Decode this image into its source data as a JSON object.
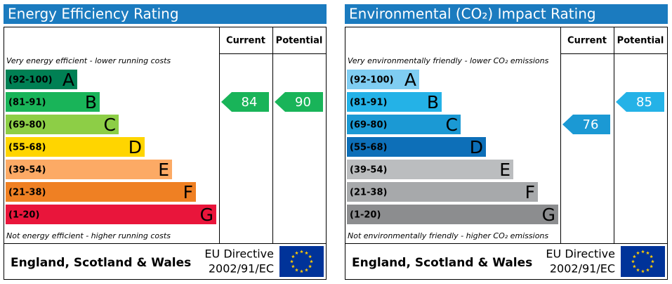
{
  "panels": [
    {
      "title": "Energy Efficiency Rating",
      "headers": [
        "Current",
        "Potential"
      ],
      "top_note": "Very energy efficient - lower running costs",
      "bottom_note": "Not energy efficient - higher running costs",
      "bands": [
        {
          "range": "(92-100)",
          "letter": "A",
          "color": "#008054"
        },
        {
          "range": "(81-91)",
          "letter": "B",
          "color": "#19b459"
        },
        {
          "range": "(69-80)",
          "letter": "C",
          "color": "#8dce46"
        },
        {
          "range": "(55-68)",
          "letter": "D",
          "color": "#ffd500"
        },
        {
          "range": "(39-54)",
          "letter": "E",
          "color": "#fcaa65"
        },
        {
          "range": "(21-38)",
          "letter": "F",
          "color": "#ef8023"
        },
        {
          "range": "(1-20)",
          "letter": "G",
          "color": "#e9153b"
        }
      ],
      "current": 84,
      "potential": 90,
      "footer": {
        "region": "England, Scotland & Wales",
        "directive": [
          "EU Directive",
          "2002/91/EC"
        ]
      }
    },
    {
      "title": "Environmental (CO₂) Impact Rating",
      "headers": [
        "Current",
        "Potential"
      ],
      "top_note": "Very environmentally friendly - lower CO₂ emissions",
      "bottom_note": "Not environmentally friendly - higher CO₂ emissions",
      "bands": [
        {
          "range": "(92-100)",
          "letter": "A",
          "color": "#7fcdf2"
        },
        {
          "range": "(81-91)",
          "letter": "B",
          "color": "#24b2e7"
        },
        {
          "range": "(69-80)",
          "letter": "C",
          "color": "#1b99d4"
        },
        {
          "range": "(55-68)",
          "letter": "D",
          "color": "#0d6fb8"
        },
        {
          "range": "(39-54)",
          "letter": "E",
          "color": "#bbbdbf"
        },
        {
          "range": "(21-38)",
          "letter": "F",
          "color": "#a7a9ab"
        },
        {
          "range": "(1-20)",
          "letter": "G",
          "color": "#8c8d8f"
        }
      ],
      "current": 76,
      "potential": 85,
      "footer": {
        "region": "England, Scotland & Wales",
        "directive": [
          "EU Directive",
          "2002/91/EC"
        ]
      }
    }
  ]
}
